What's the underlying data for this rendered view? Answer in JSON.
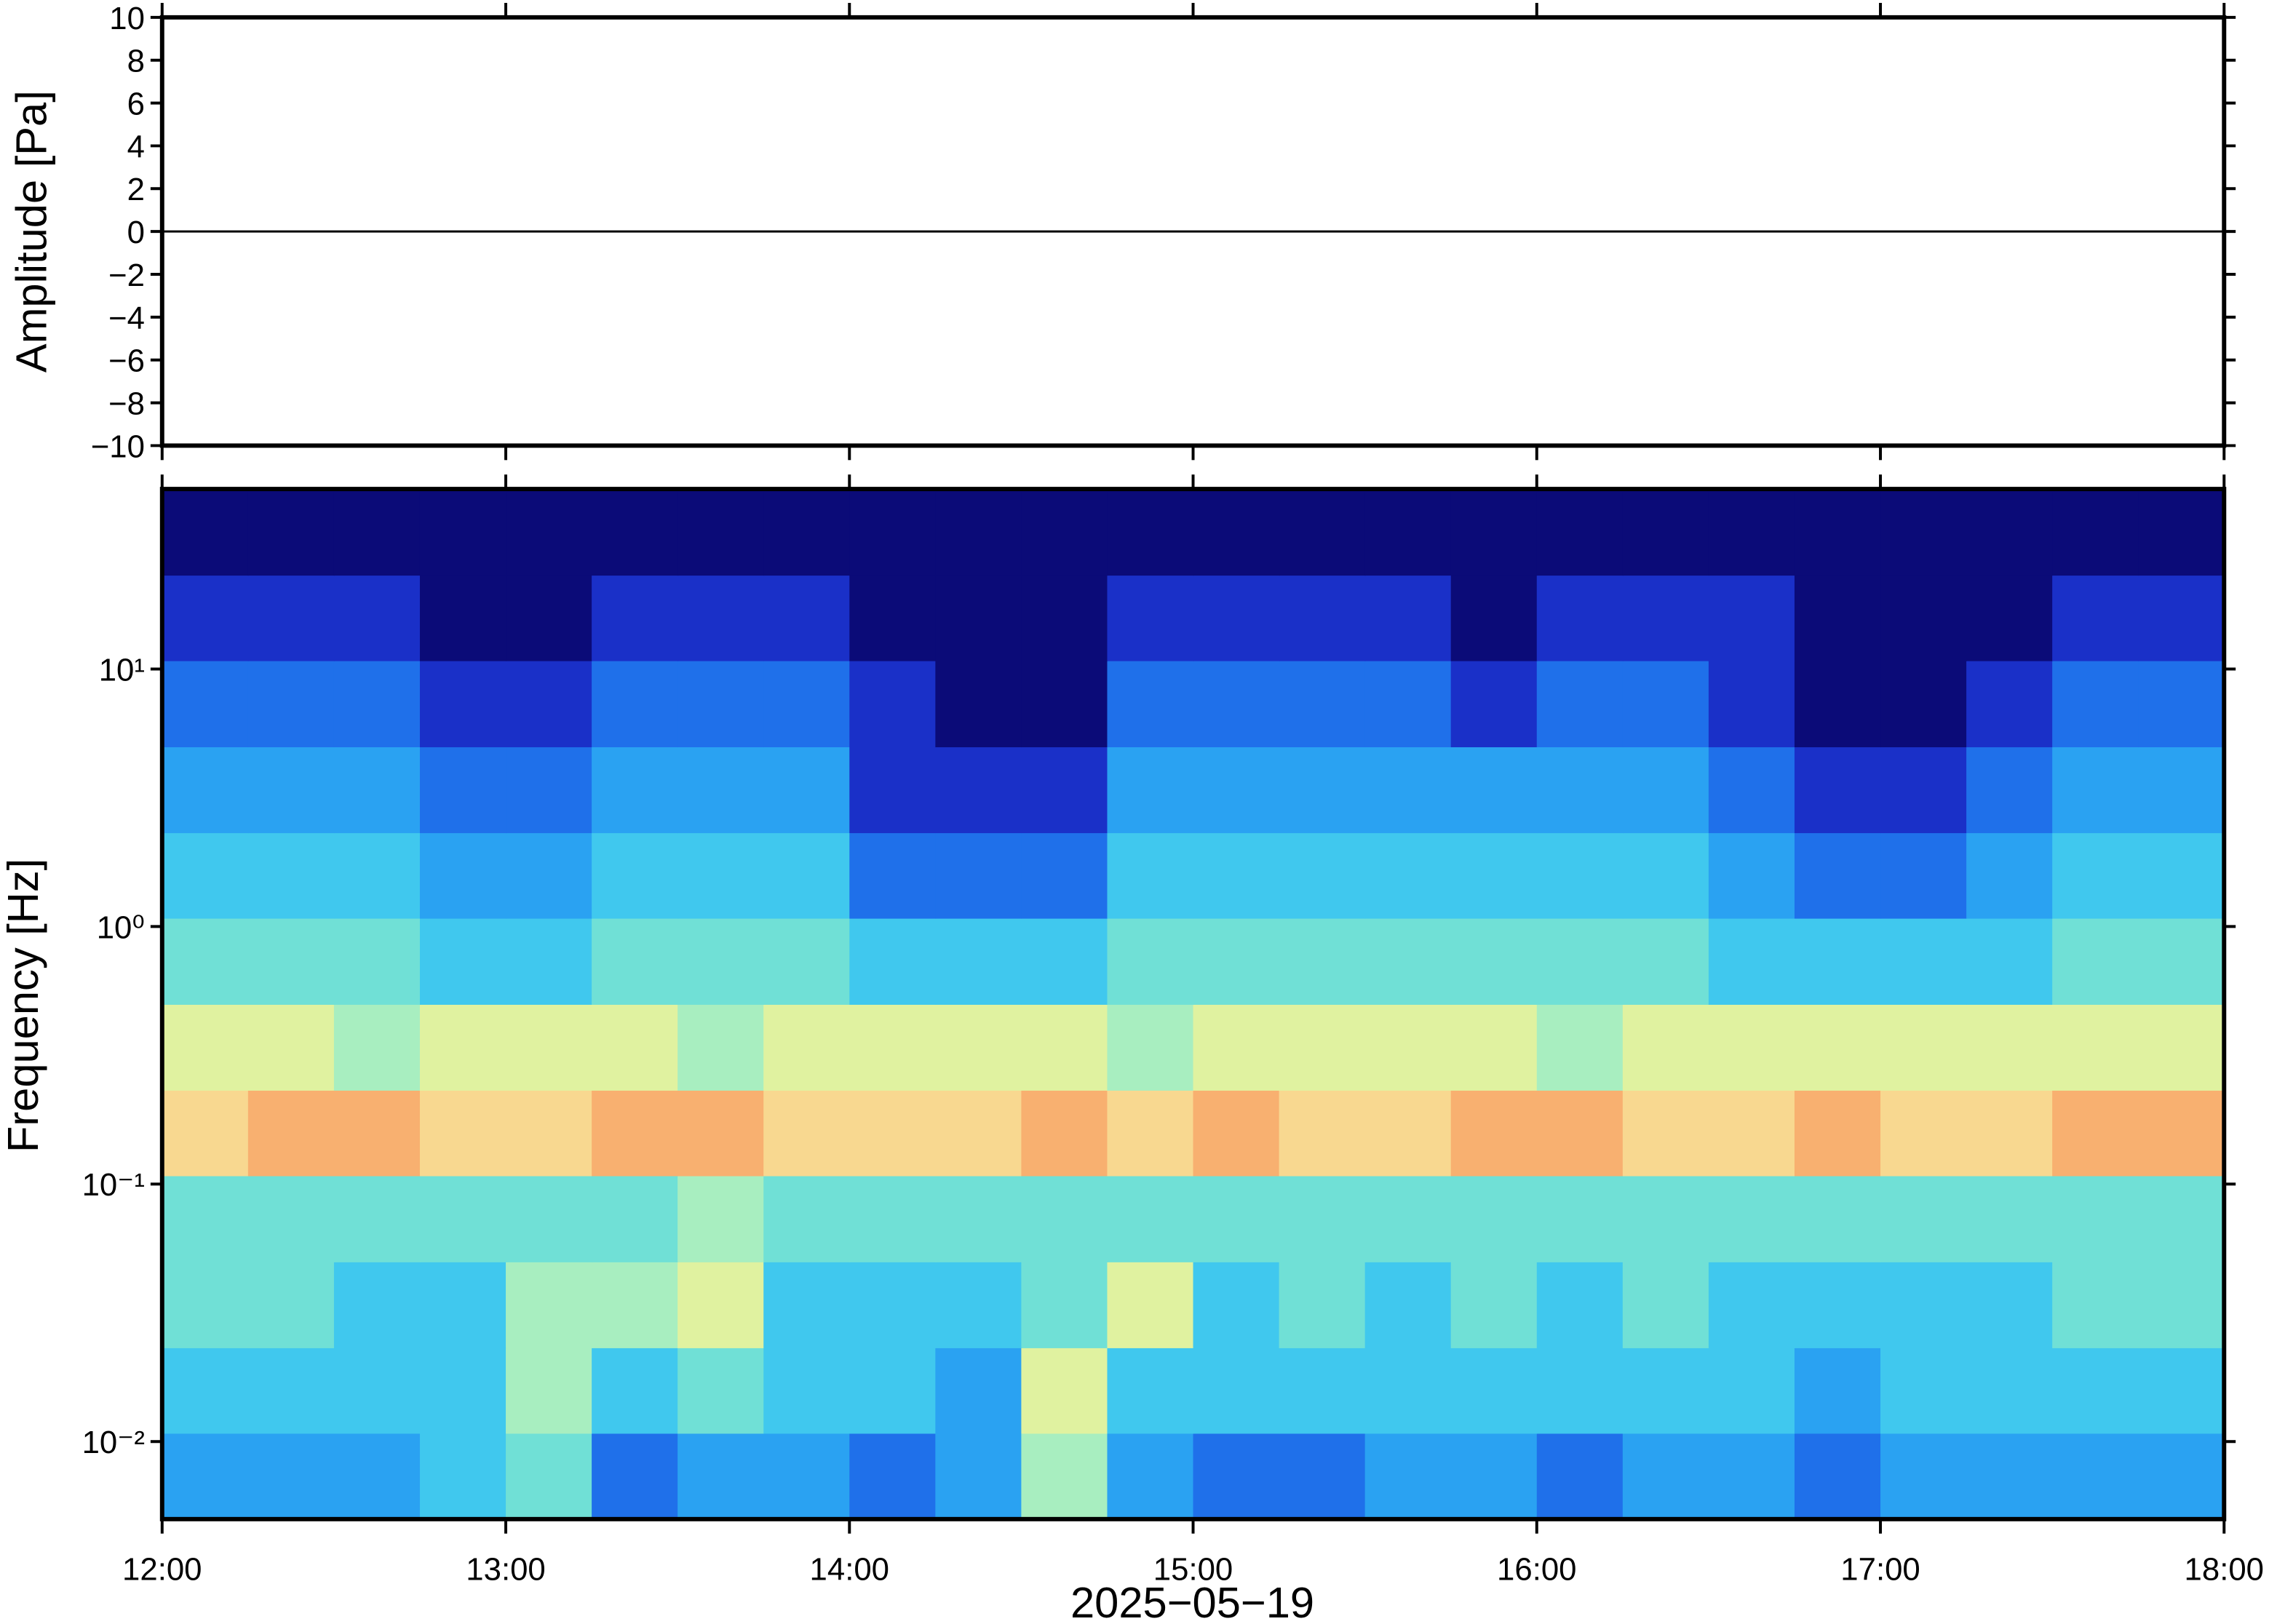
{
  "chart_data": [
    {
      "type": "line",
      "ylabel": "Amplitude [Pa]",
      "x": [
        12,
        12.25,
        12.5,
        12.75,
        13,
        13.25,
        13.5,
        13.75,
        14,
        14.25,
        14.5,
        14.75,
        15,
        15.25,
        15.5,
        15.75,
        16,
        16.25,
        16.5,
        16.75,
        17,
        17.25,
        17.5,
        17.75,
        18
      ],
      "series": [
        {
          "color": "#000000",
          "values": [
            0,
            0,
            0,
            0,
            0,
            0,
            0,
            0,
            0,
            0,
            0,
            0,
            0,
            0,
            0,
            0,
            0,
            0,
            0,
            0,
            0,
            0,
            0,
            0,
            0
          ]
        }
      ],
      "xlim": [
        12,
        18
      ],
      "xticks": [
        12,
        13,
        14,
        15,
        16,
        17,
        18
      ],
      "ylim": [
        -10,
        10
      ],
      "yticks": [
        {
          "value": -10,
          "label": "−10"
        },
        {
          "value": -8,
          "label": "−8"
        },
        {
          "value": -6,
          "label": "−6"
        },
        {
          "value": -4,
          "label": "−4"
        },
        {
          "value": -2,
          "label": "−2"
        },
        0,
        2,
        4,
        6,
        8,
        10
      ]
    },
    {
      "type": "heatmap",
      "ylabel": "Frequency [Hz]",
      "xlabel": "2025−05−19",
      "log_y": true,
      "x_bins": [
        12,
        12.25,
        12.5,
        12.75,
        13,
        13.25,
        13.5,
        13.75,
        14,
        14.25,
        14.5,
        14.75,
        15,
        15.25,
        15.5,
        15.75,
        16,
        16.25,
        16.5,
        16.75,
        17,
        17.25,
        17.5,
        17.75,
        18
      ],
      "y_bins": [
        0.005,
        0.0108,
        0.0232,
        0.05,
        0.108,
        0.232,
        0.5,
        1.08,
        2.32,
        5,
        10.8,
        23.2,
        50
      ],
      "colorscale": [
        "#0b0b78",
        "#1a30c8",
        "#1f70ea",
        "#2aa2f2",
        "#40c8ee",
        "#70e0d6",
        "#a8eec0",
        "#e0f2a0",
        "#f8d890",
        "#f8b070"
      ],
      "z": [
        [
          3,
          3,
          3,
          4,
          5,
          2,
          3,
          3,
          2,
          3,
          6,
          3,
          2,
          2,
          3,
          3,
          2,
          3,
          3,
          2,
          3,
          3,
          3,
          3
        ],
        [
          4,
          4,
          4,
          4,
          6,
          4,
          5,
          4,
          4,
          3,
          7,
          4,
          4,
          4,
          4,
          4,
          4,
          4,
          4,
          3,
          4,
          4,
          4,
          4
        ],
        [
          5,
          5,
          4,
          4,
          6,
          6,
          7,
          4,
          4,
          4,
          5,
          7,
          4,
          5,
          4,
          5,
          4,
          5,
          4,
          4,
          4,
          4,
          5,
          5
        ],
        [
          5,
          5,
          5,
          5,
          5,
          5,
          6,
          5,
          5,
          5,
          5,
          5,
          5,
          5,
          5,
          5,
          5,
          5,
          5,
          5,
          5,
          5,
          5,
          5
        ],
        [
          8,
          9,
          9,
          8,
          8,
          9,
          9,
          8,
          8,
          8,
          9,
          8,
          9,
          8,
          8,
          9,
          9,
          8,
          8,
          9,
          8,
          8,
          9,
          9
        ],
        [
          7,
          7,
          6,
          7,
          7,
          7,
          6,
          7,
          7,
          7,
          7,
          6,
          7,
          7,
          7,
          7,
          6,
          7,
          7,
          7,
          7,
          7,
          7,
          7
        ],
        [
          5,
          5,
          5,
          4,
          4,
          5,
          5,
          5,
          4,
          4,
          4,
          5,
          5,
          5,
          5,
          5,
          5,
          5,
          4,
          4,
          4,
          4,
          5,
          5
        ],
        [
          4,
          4,
          4,
          3,
          3,
          4,
          4,
          4,
          2,
          2,
          2,
          4,
          4,
          4,
          4,
          4,
          4,
          4,
          3,
          2,
          2,
          3,
          4,
          4
        ],
        [
          3,
          3,
          3,
          2,
          2,
          3,
          3,
          3,
          1,
          1,
          1,
          3,
          3,
          3,
          3,
          3,
          3,
          3,
          2,
          1,
          1,
          2,
          3,
          3
        ],
        [
          2,
          2,
          2,
          1,
          1,
          2,
          2,
          2,
          1,
          0,
          0,
          2,
          2,
          2,
          2,
          1,
          2,
          2,
          1,
          0,
          0,
          1,
          2,
          2
        ],
        [
          1,
          1,
          1,
          0,
          0,
          1,
          1,
          1,
          0,
          0,
          0,
          1,
          1,
          1,
          1,
          0,
          1,
          1,
          1,
          0,
          0,
          0,
          1,
          1
        ],
        [
          0,
          0,
          0,
          0,
          0,
          0,
          0,
          0,
          0,
          0,
          0,
          0,
          0,
          0,
          0,
          0,
          0,
          0,
          0,
          0,
          0,
          0,
          0,
          0
        ]
      ],
      "xlim": [
        12,
        18
      ],
      "xticks": [
        {
          "value": 12,
          "label": "12:00"
        },
        {
          "value": 13,
          "label": "13:00"
        },
        {
          "value": 14,
          "label": "14:00"
        },
        {
          "value": 15,
          "label": "15:00"
        },
        {
          "value": 16,
          "label": "16:00"
        },
        {
          "value": 17,
          "label": "17:00"
        },
        {
          "value": 18,
          "label": "18:00"
        }
      ],
      "ylim": [
        0.005,
        50
      ],
      "yticks": [
        {
          "value": 0.01,
          "label": "10⁻²"
        },
        {
          "value": 0.1,
          "label": "10⁻¹"
        },
        {
          "value": 1,
          "label": "10⁰"
        },
        {
          "value": 10,
          "label": "10¹"
        }
      ]
    }
  ]
}
